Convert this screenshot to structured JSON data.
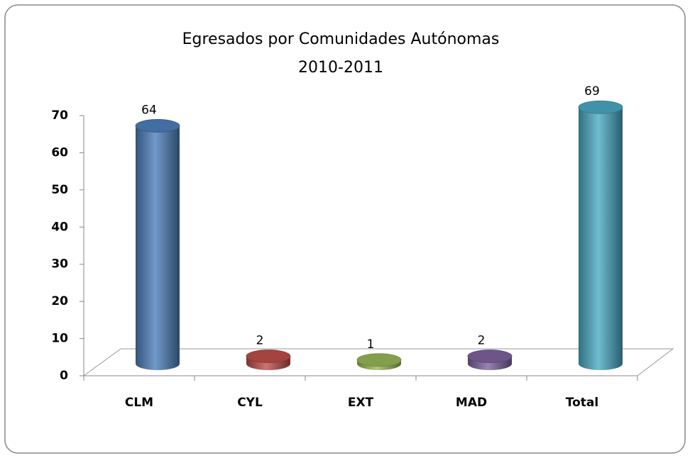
{
  "chart_data": {
    "type": "bar",
    "title": "Egresados por Comunidades  Autónomas",
    "subtitle": "2010-2011",
    "categories": [
      "CLM",
      "CYL",
      "EXT",
      "MAD",
      "Total"
    ],
    "values": [
      64,
      2,
      1,
      2,
      69
    ],
    "colors": [
      "#4f81bd",
      "#c0504d",
      "#9bbb59",
      "#8064a2",
      "#4bacc6"
    ],
    "ylim": [
      0,
      70
    ],
    "yticks": [
      0,
      10,
      20,
      30,
      40,
      50,
      60,
      70
    ],
    "grid": false
  }
}
